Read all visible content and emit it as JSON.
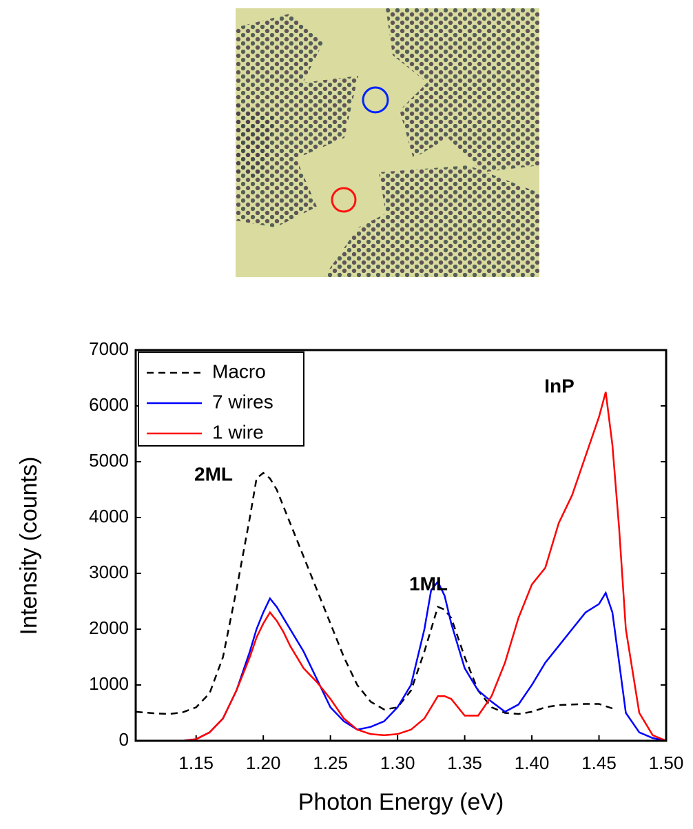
{
  "chart_data": {
    "type": "line",
    "x_label": "Photon Energy (eV)",
    "y_label": "Intensity (counts)",
    "x": [
      1.105,
      1.12,
      1.13,
      1.14,
      1.15,
      1.16,
      1.17,
      1.18,
      1.19,
      1.195,
      1.2,
      1.205,
      1.21,
      1.215,
      1.22,
      1.23,
      1.24,
      1.25,
      1.26,
      1.27,
      1.28,
      1.29,
      1.3,
      1.31,
      1.32,
      1.325,
      1.33,
      1.335,
      1.34,
      1.35,
      1.36,
      1.37,
      1.38,
      1.39,
      1.4,
      1.41,
      1.42,
      1.43,
      1.44,
      1.45,
      1.455,
      1.46,
      1.465,
      1.47,
      1.48,
      1.49,
      1.5
    ],
    "series": [
      {
        "name": "Macro",
        "color": "#000000",
        "dash": true,
        "values": [
          520,
          490,
          480,
          510,
          600,
          850,
          1500,
          2700,
          4000,
          4700,
          4800,
          4700,
          4500,
          4200,
          3900,
          3300,
          2700,
          2100,
          1500,
          1000,
          700,
          560,
          600,
          900,
          1600,
          2000,
          2400,
          2350,
          2200,
          1500,
          900,
          600,
          500,
          480,
          520,
          600,
          640,
          650,
          660,
          660,
          620,
          580,
          null,
          null,
          null,
          null,
          null
        ]
      },
      {
        "name": "7 wires",
        "color": "#0000ff",
        "dash": false,
        "values": [
          0,
          0,
          0,
          0,
          30,
          150,
          400,
          900,
          1600,
          2000,
          2300,
          2550,
          2400,
          2200,
          2000,
          1600,
          1100,
          600,
          350,
          200,
          250,
          350,
          600,
          1000,
          2000,
          2700,
          2850,
          2600,
          2100,
          1300,
          900,
          700,
          520,
          650,
          1000,
          1400,
          1700,
          2000,
          2300,
          2450,
          2650,
          2300,
          1400,
          500,
          150,
          50,
          0
        ]
      },
      {
        "name": "1 wire",
        "color": "#ff0000",
        "dash": false,
        "values": [
          0,
          0,
          0,
          0,
          30,
          150,
          400,
          900,
          1500,
          1850,
          2100,
          2300,
          2150,
          1950,
          1700,
          1300,
          1050,
          750,
          400,
          200,
          120,
          100,
          120,
          200,
          400,
          600,
          800,
          800,
          750,
          450,
          450,
          800,
          1400,
          2200,
          2800,
          3100,
          3900,
          4400,
          5100,
          5800,
          6250,
          5300,
          3800,
          2000,
          500,
          100,
          0
        ]
      }
    ],
    "annotations": [
      "2ML",
      "1ML",
      "InP"
    ],
    "xlim": [
      1.105,
      1.5
    ],
    "xticks": [
      1.15,
      {
        "value": 1.2,
        "label": "1.20"
      },
      1.25,
      {
        "value": 1.3,
        "label": "1.30"
      },
      1.35,
      {
        "value": 1.4,
        "label": "1.40"
      },
      1.45,
      {
        "value": 1.5,
        "label": "1.50"
      }
    ],
    "ylim": [
      0,
      7000
    ],
    "yticks": [
      0,
      1000,
      2000,
      3000,
      4000,
      5000,
      6000,
      7000
    ],
    "legend": "upper left"
  }
}
